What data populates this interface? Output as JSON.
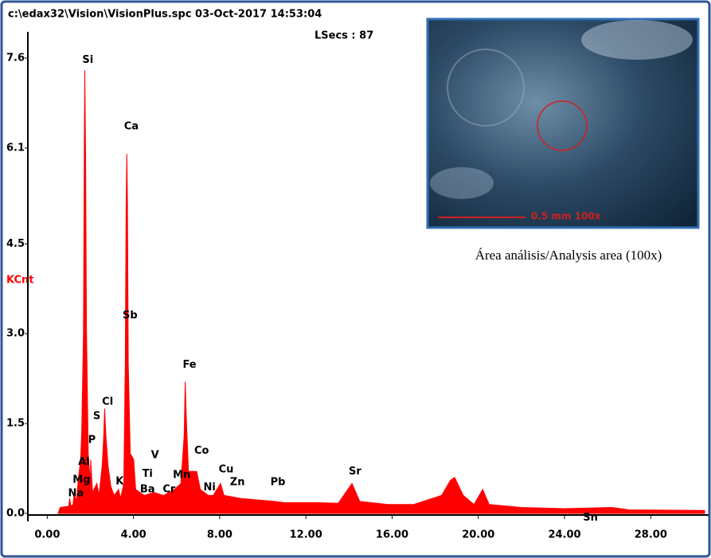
{
  "chart_data": {
    "type": "spectrum",
    "title": "c:\\edax32\\Vision\\VisionPlus.spc  03-Oct-2017 14:53:04",
    "subtitle": "LSecs :  87",
    "y_label": "KCnt",
    "color": "#ff0000",
    "x": [
      0.5,
      0.6,
      1.0,
      1.04,
      1.1,
      1.2,
      1.25,
      1.35,
      1.45,
      1.55,
      1.6,
      1.68,
      1.72,
      1.74,
      1.78,
      1.82,
      1.9,
      2.0,
      2.02,
      2.1,
      2.3,
      2.4,
      2.55,
      2.62,
      2.66,
      2.72,
      2.82,
      2.95,
      3.1,
      3.31,
      3.4,
      3.55,
      3.62,
      3.66,
      3.69,
      3.72,
      3.76,
      3.85,
      4.01,
      4.1,
      4.5,
      4.95,
      5.4,
      5.9,
      6.2,
      6.35,
      6.4,
      6.45,
      6.55,
      6.93,
      7.1,
      7.47,
      7.7,
      8.04,
      8.2,
      9.0,
      10.55,
      11.0,
      12.6,
      13.5,
      14.14,
      14.5,
      15.8,
      17.0,
      18.3,
      18.7,
      18.9,
      19.3,
      19.8,
      20.2,
      20.5,
      22.0,
      24.0,
      26.2,
      27.0,
      30.5
    ],
    "values": [
      0.0,
      0.1,
      0.12,
      0.25,
      0.12,
      0.15,
      0.35,
      0.2,
      0.6,
      0.9,
      1.4,
      3.0,
      6.2,
      7.4,
      6.0,
      3.1,
      1.0,
      0.5,
      0.9,
      0.35,
      0.5,
      0.3,
      0.8,
      1.3,
      1.75,
      1.3,
      0.8,
      0.45,
      0.3,
      0.4,
      0.25,
      0.5,
      2.6,
      5.1,
      6.0,
      5.2,
      2.5,
      1.0,
      0.9,
      0.4,
      0.3,
      0.35,
      0.3,
      0.4,
      0.5,
      1.3,
      2.2,
      1.6,
      0.7,
      0.7,
      0.4,
      0.3,
      0.3,
      0.5,
      0.3,
      0.25,
      0.2,
      0.18,
      0.18,
      0.17,
      0.5,
      0.2,
      0.15,
      0.15,
      0.3,
      0.55,
      0.6,
      0.3,
      0.15,
      0.4,
      0.15,
      0.1,
      0.08,
      0.1,
      0.06,
      0.05
    ],
    "xlim": [
      -0.9,
      30.5
    ],
    "ylim": [
      0,
      7.6
    ],
    "xticks": [
      {
        "value": 0,
        "label": "0.00"
      },
      {
        "value": 4,
        "label": "4.00"
      },
      {
        "value": 8,
        "label": "8.00"
      },
      {
        "value": 12,
        "label": "12.00"
      },
      {
        "value": 16,
        "label": "16.00"
      },
      {
        "value": 20,
        "label": "20.00"
      },
      {
        "value": 24,
        "label": "24.00"
      },
      {
        "value": 28,
        "label": "28.00"
      }
    ],
    "yticks": [
      {
        "value": 0,
        "label": "0.0"
      },
      1.5,
      {
        "value": 3,
        "label": "3.0"
      },
      4.5,
      6.1,
      7.6
    ],
    "annotations": [
      {
        "text": "Si",
        "x": 1.88,
        "y": 7.57
      },
      {
        "text": "Ca",
        "x": 3.9,
        "y": 6.46
      },
      {
        "text": "Sb",
        "x": 3.84,
        "y": 3.3
      },
      {
        "text": "Fe",
        "x": 6.6,
        "y": 2.48
      },
      {
        "text": "Cl",
        "x": 2.8,
        "y": 1.86
      },
      {
        "text": "S",
        "x": 2.3,
        "y": 1.62
      },
      {
        "text": "P",
        "x": 2.07,
        "y": 1.22
      },
      {
        "text": "Al",
        "x": 1.7,
        "y": 0.86
      },
      {
        "text": "Mg",
        "x": 1.59,
        "y": 0.56
      },
      {
        "text": "Na",
        "x": 1.33,
        "y": 0.33
      },
      {
        "text": "K",
        "x": 3.36,
        "y": 0.53
      },
      {
        "text": "V",
        "x": 5.0,
        "y": 0.97
      },
      {
        "text": "Ti",
        "x": 4.65,
        "y": 0.66
      },
      {
        "text": "Ba",
        "x": 4.65,
        "y": 0.4
      },
      {
        "text": "Cr",
        "x": 5.65,
        "y": 0.4
      },
      {
        "text": "Mn",
        "x": 6.24,
        "y": 0.64
      },
      {
        "text": "Co",
        "x": 7.16,
        "y": 1.04
      },
      {
        "text": "Ni",
        "x": 7.53,
        "y": 0.43
      },
      {
        "text": "Cu",
        "x": 8.3,
        "y": 0.73
      },
      {
        "text": "Zn",
        "x": 8.82,
        "y": 0.52
      },
      {
        "text": "Pb",
        "x": 10.7,
        "y": 0.52
      },
      {
        "text": "Sr",
        "x": 14.28,
        "y": 0.7
      },
      {
        "text": "Sn",
        "x": 25.2,
        "y": -0.07
      }
    ]
  },
  "inset": {
    "scale_label": "0.5 mm  100x",
    "caption": "Área análisis/Analysis area (100x)"
  }
}
